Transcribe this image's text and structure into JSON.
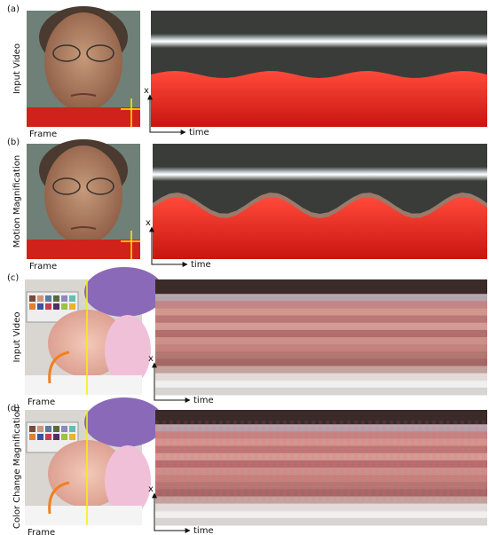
{
  "panels": [
    {
      "label": "(a)",
      "side_label": "Input Video",
      "frame_label": "Frame",
      "x_label": "x",
      "time_label": "time"
    },
    {
      "label": "(b)",
      "side_label": "Motion Magnification",
      "frame_label": "Frame",
      "x_label": "x",
      "time_label": "time"
    },
    {
      "label": "(c)",
      "side_label": "Input Video",
      "frame_label": "Frame",
      "x_label": "x",
      "time_label": "time"
    },
    {
      "label": "(d)",
      "side_label": "Color Change Magnification",
      "frame_label": "Frame",
      "x_label": "x",
      "time_label": "time"
    }
  ]
}
